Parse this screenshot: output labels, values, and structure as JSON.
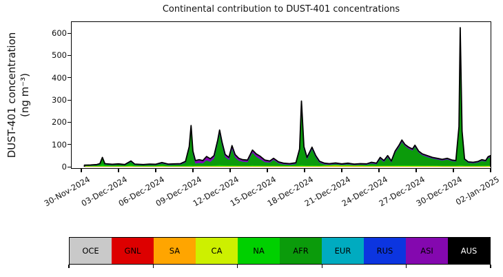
{
  "figure": {
    "title": "Continental contribution to DUST-401 concentrations",
    "y_axis": {
      "label_line1": "DUST-401 concentration",
      "label_line2": "(ng m⁻³)"
    }
  },
  "legend": {
    "items": [
      {
        "label": "OCE",
        "color": "#c9c9c9",
        "text_color": "#000000"
      },
      {
        "label": "GNL",
        "color": "#dd0000",
        "text_color": "#000000"
      },
      {
        "label": "SA",
        "color": "#ffa500",
        "text_color": "#000000"
      },
      {
        "label": "CA",
        "color": "#cdf000",
        "text_color": "#000000"
      },
      {
        "label": "NA",
        "color": "#00d000",
        "text_color": "#000000"
      },
      {
        "label": "AFR",
        "color": "#0b9b0b",
        "text_color": "#000000"
      },
      {
        "label": "EUR",
        "color": "#00abc0",
        "text_color": "#000000"
      },
      {
        "label": "RUS",
        "color": "#0c35e0",
        "text_color": "#000000"
      },
      {
        "label": "ASI",
        "color": "#8408af",
        "text_color": "#000000"
      },
      {
        "label": "AUS",
        "color": "#000000",
        "text_color": "#ffffff"
      }
    ]
  },
  "chart_data": {
    "type": "area",
    "stacked": true,
    "title": "Continental contribution to DUST-401 concentrations",
    "xlabel": "",
    "ylabel": "DUST-401 concentration (ng m⁻³)",
    "units": "ng m⁻³",
    "grid": false,
    "legend_position": "bottom color bar",
    "ylim": [
      0,
      650
    ],
    "yticks": [
      0,
      100,
      200,
      300,
      400,
      500,
      600
    ],
    "xtick_labels": [
      "30-Nov-2024",
      "03-Dec-2024",
      "06-Dec-2024",
      "09-Dec-2024",
      "12-Dec-2024",
      "15-Dec-2024",
      "18-Dec-2024",
      "21-Dec-2024",
      "24-Dec-2024",
      "27-Dec-2024",
      "30-Dec-2024",
      "02-Jan-2025"
    ],
    "xtick_days": [
      0,
      3,
      6,
      9,
      12,
      15,
      18,
      21,
      24,
      27,
      30,
      33
    ],
    "x_unit": "days since 30-Nov-2024",
    "x": [
      0.25,
      0.75,
      1.25,
      1.5,
      1.7,
      1.9,
      2.5,
      3,
      3.5,
      4,
      4.3,
      5,
      5.5,
      6,
      6.5,
      7,
      7.5,
      8,
      8.4,
      8.7,
      8.85,
      9,
      9.2,
      9.5,
      9.8,
      10.1,
      10.4,
      10.7,
      11,
      11.15,
      11.35,
      11.6,
      11.9,
      12.15,
      12.4,
      12.7,
      13,
      13.4,
      13.8,
      14.1,
      14.4,
      14.8,
      15.2,
      15.5,
      15.9,
      16.3,
      16.8,
      17.3,
      17.6,
      17.75,
      17.95,
      18.2,
      18.6,
      18.9,
      19.2,
      19.6,
      20,
      20.5,
      21,
      21.5,
      22,
      22.5,
      23,
      23.4,
      23.8,
      24.1,
      24.4,
      24.7,
      25,
      25.3,
      25.6,
      25.85,
      26.1,
      26.4,
      26.7,
      26.9,
      27.2,
      27.5,
      27.9,
      28.3,
      28.7,
      29.1,
      29.5,
      29.9,
      30.2,
      30.45,
      30.55,
      30.7,
      30.9,
      31.2,
      31.6,
      32,
      32.3,
      32.6,
      32.8,
      33
    ],
    "total_line_color": "#000000",
    "series": [
      {
        "name": "OCE",
        "color": "#c9c9c9",
        "constant": 0.3
      },
      {
        "name": "GNL",
        "color": "#dd0000",
        "constant": 0.2
      },
      {
        "name": "SA",
        "color": "#ffa500",
        "values": [
          0.4,
          0.4,
          0.4,
          0.4,
          0.4,
          0.4,
          0.4,
          0.4,
          0.4,
          0.5,
          0.4,
          0.4,
          0.4,
          0.4,
          0.5,
          0.4,
          0.4,
          0.4,
          0.4,
          0.4,
          0.4,
          0.4,
          0.4,
          0.4,
          0.4,
          0.4,
          0.4,
          0.4,
          0.4,
          0.4,
          0.4,
          0.4,
          0.4,
          0.4,
          0.4,
          0.4,
          0.4,
          0.4,
          0.4,
          0.4,
          0.4,
          0.4,
          0.4,
          0.4,
          0.4,
          0.4,
          0.4,
          0.4,
          0.4,
          0.4,
          0.4,
          0.4,
          0.4,
          0.4,
          0.4,
          0.8,
          1.2,
          1.5,
          1.2,
          1.2,
          1.0,
          1.0,
          0.8,
          0.8,
          0.6,
          0.5,
          0.5,
          0.5,
          0.5,
          0.5,
          0.5,
          0.5,
          0.5,
          0.5,
          0.5,
          0.5,
          0.5,
          0.5,
          0.5,
          0.5,
          0.5,
          0.5,
          0.5,
          0.5,
          0.5,
          0.5,
          0.5,
          0.5,
          0.5,
          0.5,
          0.5,
          0.5,
          0.5,
          0.5,
          0.5,
          0.5
        ]
      },
      {
        "name": "CA",
        "color": "#cdf000",
        "values": [
          2,
          2,
          2,
          2,
          2,
          2,
          2,
          2,
          2,
          2.5,
          2,
          2,
          2,
          2,
          2.5,
          2,
          2,
          2,
          2,
          2,
          2,
          2,
          2.5,
          2.5,
          2.5,
          2.5,
          2.5,
          2.5,
          2.5,
          2.5,
          2.5,
          2.5,
          2.5,
          2.5,
          2.5,
          2.5,
          2.5,
          2.5,
          2.5,
          2.5,
          2.5,
          2.5,
          2.5,
          2.5,
          2.5,
          2.5,
          2.5,
          2.5,
          2.5,
          2.5,
          2.5,
          2.5,
          2.5,
          2.5,
          2.5,
          3.5,
          4,
          4.5,
          4,
          4,
          3.5,
          3.5,
          3,
          3,
          3,
          3,
          3,
          3,
          3,
          3,
          3,
          3,
          3,
          3,
          3,
          3,
          3,
          3,
          3,
          3,
          3,
          2.5,
          2.5,
          2.5,
          2.5,
          2.5,
          2.5,
          2.5,
          2.5,
          2.5,
          2.5,
          2.5,
          2.5,
          2.5,
          3,
          3
        ]
      },
      {
        "name": "NA",
        "color": "#00d000",
        "values": [
          1,
          1,
          1,
          2,
          8,
          3,
          1.5,
          1.5,
          1.5,
          5,
          2,
          1.5,
          1.5,
          1.5,
          3,
          1.5,
          1.5,
          1.5,
          2,
          4,
          5,
          3,
          2,
          2,
          2,
          2,
          2,
          2.5,
          4,
          5,
          4,
          3,
          2.5,
          3,
          2.5,
          2,
          2,
          2,
          3,
          2.5,
          2.5,
          2,
          2,
          2,
          1.5,
          1.5,
          1.5,
          1.5,
          3,
          5,
          3,
          2,
          3,
          2.5,
          2,
          1.5,
          1,
          1,
          1,
          1,
          1,
          1,
          1,
          1.5,
          1.5,
          2,
          2,
          2,
          2,
          2.5,
          3,
          3,
          3,
          2.5,
          2.5,
          2.5,
          2.5,
          2,
          2,
          2,
          1.5,
          1.5,
          1.5,
          1.5,
          1.5,
          3,
          3.5,
          3,
          1.5,
          1.5,
          1.5,
          1.5,
          2,
          2,
          2,
          2.5
        ]
      },
      {
        "name": "AFR",
        "color": "#0b9b0b",
        "values": [
          0.7,
          1.7,
          3.2,
          6.2,
          27.2,
          5.2,
          3.7,
          5.7,
          2.7,
          13.6,
          4.2,
          2.7,
          4.7,
          3.7,
          8.6,
          4.2,
          5.2,
          5.7,
          14.2,
          74.2,
          164.2,
          53.2,
          9.7,
          11.7,
          9.7,
          23.7,
          16.7,
          31.2,
          101.7,
          143.7,
          89.7,
          37.7,
          25.2,
          75.7,
          36.2,
          21.7,
          17.7,
          15.7,
          57.7,
          39.2,
          29.2,
          15.7,
          13.7,
          25.7,
          11.2,
          6.2,
          4.2,
          8.2,
          64.7,
          275.6,
          74.7,
          29.7,
          73.7,
          37.2,
          13.7,
          4.8,
          2.9,
          5.1,
          2.4,
          4.9,
          2.1,
          4.1,
          3.8,
          9.3,
          6.0,
          29.1,
          16.1,
          37.1,
          14.1,
          56.6,
          80.1,
          105.1,
          86.1,
          74.6,
          66.6,
          83.6,
          57.6,
          46.1,
          38.1,
          31.1,
          27.6,
          23.1,
          28.1,
          20.6,
          18.6,
          167.5,
          609.5,
          147.5,
          25.6,
          13.1,
          11.1,
          14.6,
          21.6,
          17.6,
          33.1,
          37.6
        ]
      },
      {
        "name": "EUR",
        "color": "#00abc0",
        "constant": 0.3
      },
      {
        "name": "RUS",
        "color": "#0c35e0",
        "values": [
          0.4,
          0.4,
          0.4,
          0.4,
          0.4,
          0.4,
          0.4,
          0.4,
          0.4,
          0.4,
          0.4,
          0.4,
          0.4,
          0.4,
          0.4,
          0.4,
          0.4,
          0.4,
          0.4,
          0.4,
          0.4,
          0.4,
          0.4,
          0.4,
          0.4,
          0.4,
          0.4,
          0.4,
          0.4,
          0.4,
          0.4,
          0.4,
          0.4,
          0.4,
          0.4,
          0.4,
          0.4,
          0.4,
          0.4,
          0.4,
          0.4,
          0.4,
          0.4,
          0.4,
          0.4,
          0.4,
          0.4,
          0.4,
          0.4,
          0.5,
          0.4,
          0.4,
          0.4,
          0.4,
          0.4,
          0.4,
          0.4,
          0.4,
          0.4,
          0.4,
          0.4,
          0.4,
          0.4,
          0.4,
          0.4,
          0.4,
          0.4,
          0.4,
          0.4,
          0.4,
          0.4,
          0.4,
          0.4,
          0.4,
          0.4,
          0.4,
          0.4,
          0.4,
          0.4,
          0.4,
          0.4,
          0.4,
          0.4,
          0.4,
          0.4,
          1.5,
          3,
          1.5,
          0.4,
          0.4,
          0.4,
          0.4,
          0.4,
          0.4,
          0.4,
          0.4
        ]
      },
      {
        "name": "ASI",
        "color": "#8408af",
        "values": [
          1.5,
          1.5,
          2,
          2,
          3,
          2,
          2,
          2,
          2,
          3,
          2,
          2,
          2,
          2,
          3,
          2.5,
          2.5,
          3,
          4,
          8,
          12,
          10,
          12,
          14,
          12,
          16,
          13,
          12,
          10,
          12,
          12,
          10,
          10,
          12,
          12,
          10,
          8,
          8,
          10,
          12,
          12,
          8,
          6,
          6,
          5,
          4,
          4,
          4,
          8,
          10,
          8,
          6,
          7,
          6,
          5,
          4,
          3.5,
          3.5,
          3,
          3.5,
          3,
          3,
          3,
          4,
          3.5,
          6,
          5,
          6,
          5,
          6,
          7,
          7,
          6,
          6,
          6,
          6,
          5,
          5,
          5,
          4,
          4,
          4,
          4,
          3.5,
          3.5,
          4,
          5,
          4,
          3.5,
          3,
          3,
          3.5,
          4,
          4,
          5,
          5
        ]
      },
      {
        "name": "AUS",
        "color": "#000000",
        "constant": 0.2
      }
    ]
  }
}
